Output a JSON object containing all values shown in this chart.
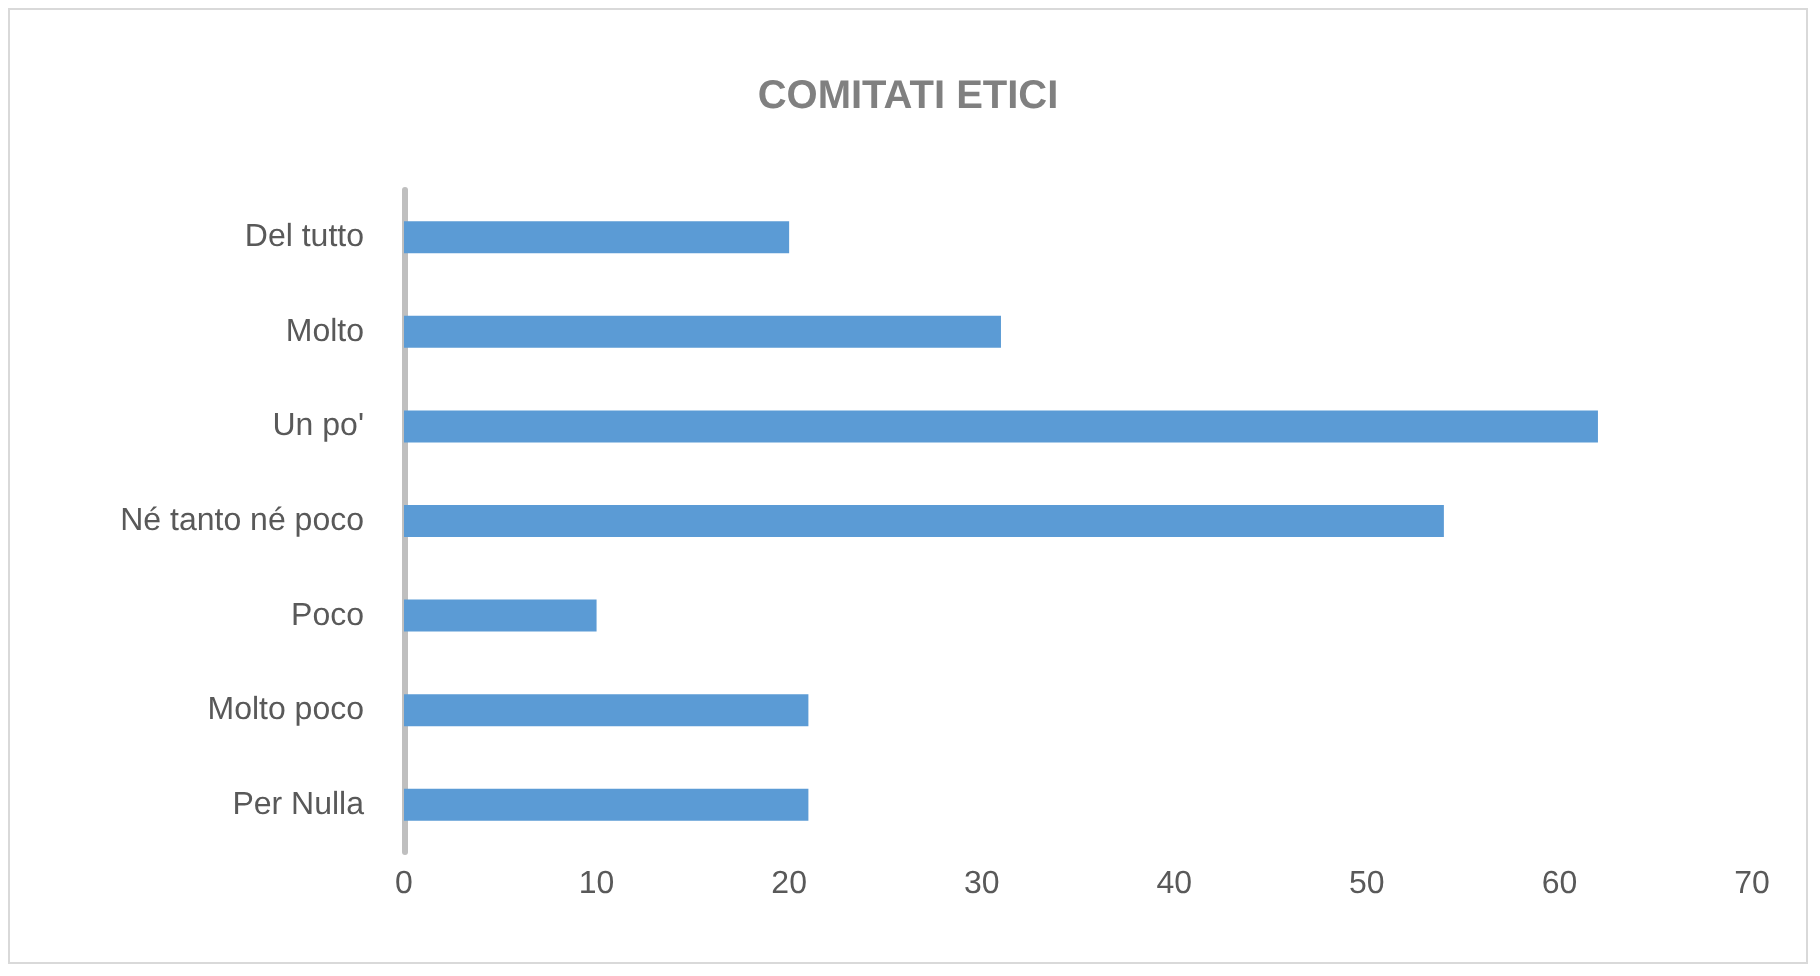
{
  "chart_data": {
    "type": "bar",
    "title": "COMITATI ETICI",
    "orientation": "horizontal",
    "categories": [
      "Del tutto",
      "Molto",
      "Un po'",
      "Né tanto né poco",
      "Poco",
      "Molto poco",
      "Per Nulla"
    ],
    "values": [
      20,
      31,
      62,
      54,
      10,
      21,
      21
    ],
    "color": "#5b9bd5",
    "xlim": [
      0,
      70
    ],
    "xticks": [
      0,
      10,
      20,
      30,
      40,
      50,
      60,
      70
    ],
    "grid": false
  }
}
